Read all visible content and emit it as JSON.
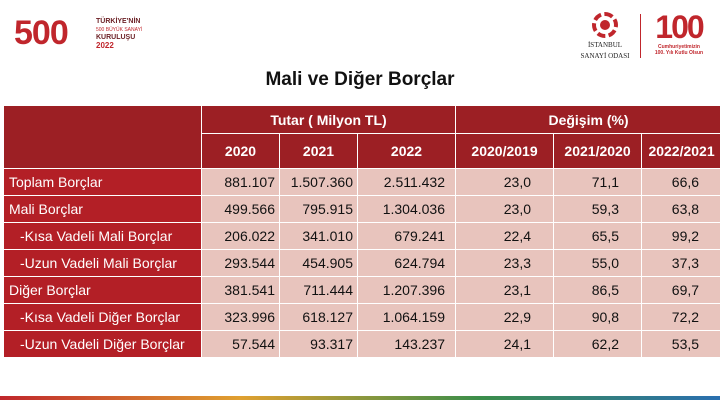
{
  "header": {
    "left_logo": {
      "big": "500",
      "line1": "TÜRKİYE'NİN",
      "line2": "500 BÜYÜK SANAYİ",
      "line3": "KURULUŞU",
      "year": "2022"
    },
    "iso_logo": {
      "line1": "İSTANBUL",
      "line2": "SANAYİ ODASI"
    },
    "right_logo": {
      "big": "100",
      "cap1": "Cumhuriyetimizin",
      "cap2": "100. Yılı Kutlu Olsun"
    }
  },
  "title": "Mali ve Diğer Borçlar",
  "table": {
    "group_headers": {
      "tutar": "Tutar ( Milyon TL)",
      "degisim": "Değişim (%)"
    },
    "columns": [
      "2020",
      "2021",
      "2022",
      "2020/2019",
      "2021/2020",
      "2022/2021"
    ],
    "rows": [
      {
        "label": "Toplam Borçlar",
        "values": [
          "881.107",
          "1.507.360",
          "2.511.432",
          "23,0",
          "71,1",
          "66,6"
        ]
      },
      {
        "label": "Mali Borçlar",
        "values": [
          "499.566",
          "795.915",
          "1.304.036",
          "23,0",
          "59,3",
          "63,8"
        ]
      },
      {
        "label": "-Kısa Vadeli Mali Borçlar",
        "values": [
          "206.022",
          "341.010",
          "679.241",
          "22,4",
          "65,5",
          "99,2"
        ]
      },
      {
        "label": "-Uzun Vadeli Mali Borçlar",
        "values": [
          "293.544",
          "454.905",
          "624.794",
          "23,3",
          "55,0",
          "37,3"
        ]
      },
      {
        "label": "Diğer Borçlar",
        "values": [
          "381.541",
          "711.444",
          "1.207.396",
          "23,1",
          "86,5",
          "69,7"
        ]
      },
      {
        "label": "-Kısa Vadeli Diğer Borçlar",
        "values": [
          "323.996",
          "618.127",
          "1.064.159",
          "22,9",
          "90,8",
          "72,2"
        ]
      },
      {
        "label": "-Uzun Vadeli Diğer Borçlar",
        "values": [
          "57.544",
          "93.317",
          "143.237",
          "24,1",
          "62,2",
          "53,5"
        ]
      }
    ]
  },
  "colors": {
    "header_red": "#9c1f24",
    "label_red": "#b31f26",
    "cell_pink": "#e8c4bd",
    "brand_red": "#c0262c"
  }
}
